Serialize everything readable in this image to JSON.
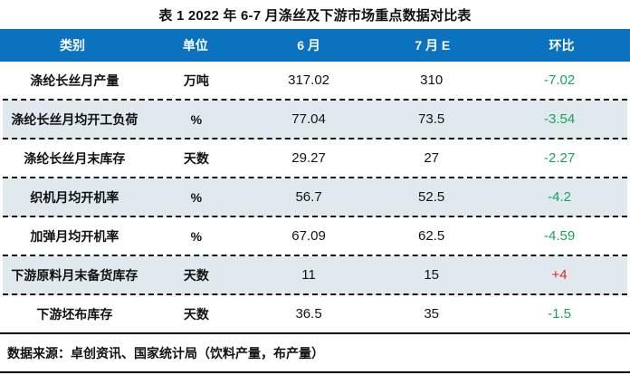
{
  "title": "表 1 2022 年 6-7 月涤丝及下游市场重点数据对比表",
  "table": {
    "columns": [
      "类别",
      "单位",
      "6 月",
      "7 月 E",
      "环比"
    ],
    "rows": [
      {
        "category": "涤纶长丝月产量",
        "unit": "万吨",
        "jun": "317.02",
        "jul_e": "310",
        "mom": "-7.02"
      },
      {
        "category": "涤纶长丝月均开工负荷",
        "unit": "%",
        "jun": "77.04",
        "jul_e": "73.5",
        "mom": "-3.54"
      },
      {
        "category": "涤纶长丝月末库存",
        "unit": "天数",
        "jun": "29.27",
        "jul_e": "27",
        "mom": "-2.27"
      },
      {
        "category": "织机月均开机率",
        "unit": "%",
        "jun": "56.7",
        "jul_e": "52.5",
        "mom": "-4.2"
      },
      {
        "category": "加弹月均开机率",
        "unit": "%",
        "jun": "67.09",
        "jul_e": "62.5",
        "mom": "-4.59"
      },
      {
        "category": "下游原料月末备货库存",
        "unit": "天数",
        "jun": "11",
        "jul_e": "15",
        "mom": "+4"
      },
      {
        "category": "下游坯布库存",
        "unit": "天数",
        "jun": "36.5",
        "jul_e": "35",
        "mom": "-1.5"
      }
    ]
  },
  "footer": {
    "source": "数据来源：卓创资讯、国家统计局（饮料产量，布产量）"
  },
  "colors": {
    "header_bg": "#0B72BF",
    "header_text": "#FFFFFF",
    "stripe_bg": "#DFE9EE",
    "increase_red": "#E3281E",
    "decrease_green": "#17A45B"
  }
}
